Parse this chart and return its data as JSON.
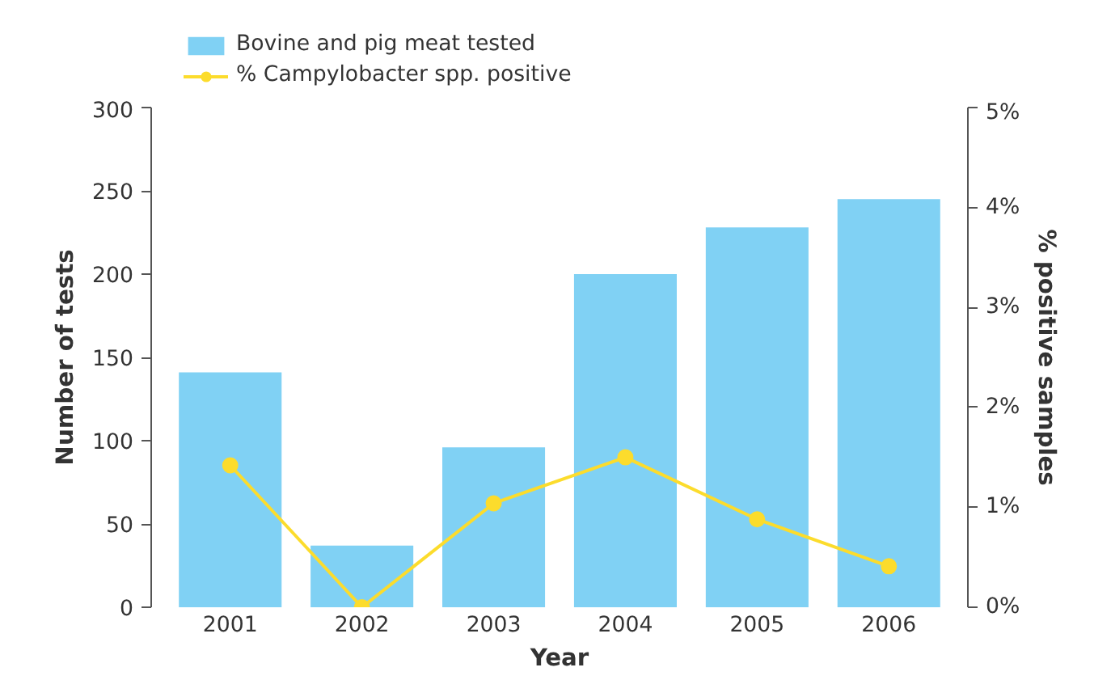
{
  "chart_data": {
    "type": "bar",
    "xlabel": "Year",
    "ylabel": "Number of tests",
    "y2label": "% positive samples",
    "categories": [
      "2001",
      "2002",
      "2003",
      "2004",
      "2005",
      "2006"
    ],
    "series": [
      {
        "name": "Bovine and pig meat tested",
        "color": "#80d1f4",
        "values": [
          141,
          37,
          96,
          200,
          228,
          245
        ]
      },
      {
        "name": "% Campylobacter spp. positive",
        "type": "line",
        "axis": "y2",
        "color": "#fcdc2c",
        "values": [
          1.42,
          0,
          1.04,
          1.5,
          0.88,
          0.41
        ]
      }
    ],
    "ylim": [
      0,
      300
    ],
    "yticks": [
      0,
      50,
      100,
      150,
      200,
      250,
      300
    ],
    "y2lim": [
      0,
      5
    ],
    "y2ticks": [
      {
        "value": 0,
        "label": "0%"
      },
      {
        "value": 1,
        "label": "1%"
      },
      {
        "value": 2,
        "label": "2%"
      },
      {
        "value": 3,
        "label": "3%"
      },
      {
        "value": 4,
        "label": "4%"
      },
      {
        "value": 5,
        "label": "5%"
      }
    ],
    "grid": false,
    "legend": "top left",
    "marker": "circle"
  }
}
